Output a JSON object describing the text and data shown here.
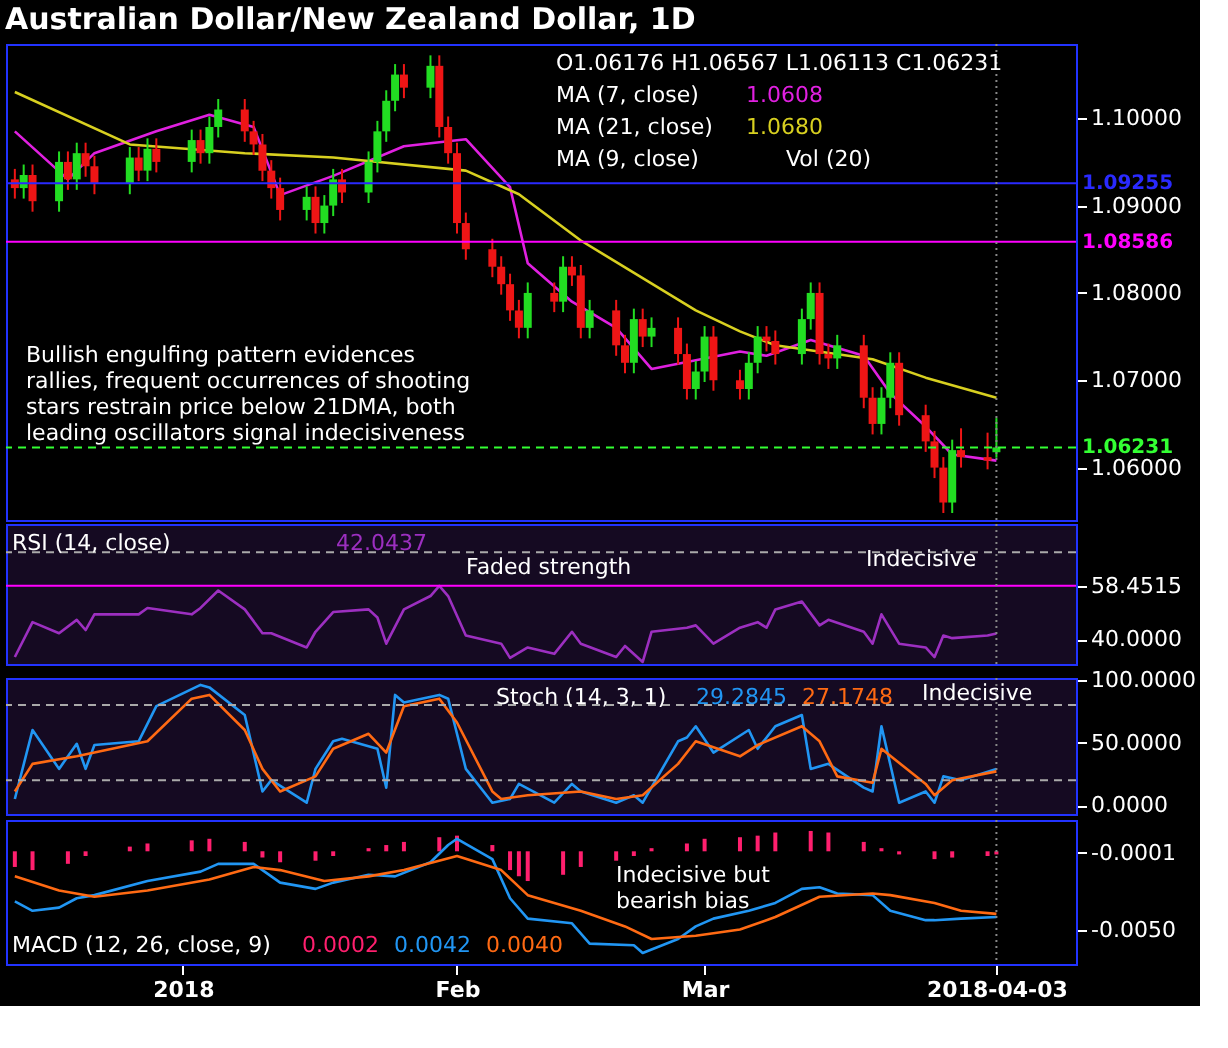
{
  "chart_data": [
    {
      "type": "candlestick",
      "title": "Australian Dollar/New Zealand Dollar, 1D",
      "annotations": [
        "O1.06176 H1.06567 L1.06113 C1.06231",
        "MA (7, close)",
        "1.0608",
        "MA (21, close)",
        "1.0680",
        "MA (9, close)",
        "Vol (20)",
        "Bullish engulfing pattern evidences rallies, frequent occurrences of shooting stars restrain price below 21DMA, both leading oscillators signal indecisiveness"
      ],
      "x": [
        "2017-12-13",
        "2017-12-14",
        "2017-12-15",
        "2017-12-18",
        "2017-12-19",
        "2017-12-20",
        "2017-12-21",
        "2017-12-22",
        "2017-12-26",
        "2017-12-27",
        "2017-12-28",
        "2017-12-29",
        "2018-01-02",
        "2018-01-03",
        "2018-01-04",
        "2018-01-05",
        "2018-01-08",
        "2018-01-09",
        "2018-01-10",
        "2018-01-11",
        "2018-01-12",
        "2018-01-15",
        "2018-01-16",
        "2018-01-17",
        "2018-01-18",
        "2018-01-19",
        "2018-01-22",
        "2018-01-23",
        "2018-01-24",
        "2018-01-25",
        "2018-01-26",
        "2018-01-29",
        "2018-01-30",
        "2018-01-31",
        "2018-02-01",
        "2018-02-02",
        "2018-02-05",
        "2018-02-06",
        "2018-02-07",
        "2018-02-08",
        "2018-02-09",
        "2018-02-12",
        "2018-02-13",
        "2018-02-14",
        "2018-02-15",
        "2018-02-16",
        "2018-02-19",
        "2018-02-20",
        "2018-02-21",
        "2018-02-22",
        "2018-02-23",
        "2018-02-26",
        "2018-02-27",
        "2018-02-28",
        "2018-03-01",
        "2018-03-02",
        "2018-03-05",
        "2018-03-06",
        "2018-03-07",
        "2018-03-08",
        "2018-03-09",
        "2018-03-12",
        "2018-03-13",
        "2018-03-14",
        "2018-03-15",
        "2018-03-16",
        "2018-03-19",
        "2018-03-20",
        "2018-03-21",
        "2018-03-22",
        "2018-03-23",
        "2018-03-26",
        "2018-03-27",
        "2018-03-28",
        "2018-03-29",
        "2018-03-30",
        "2018-04-02",
        "2018-04-03"
      ],
      "ohlc": [
        [
          1.093,
          1.0942,
          1.0908,
          1.092
        ],
        [
          1.092,
          1.0947,
          1.0908,
          1.0935
        ],
        [
          1.0935,
          1.0947,
          1.0893,
          1.0905
        ],
        [
          1.0905,
          1.0962,
          1.0893,
          1.095
        ],
        [
          1.095,
          1.0962,
          1.0918,
          1.093
        ],
        [
          1.093,
          1.0972,
          1.0918,
          1.096
        ],
        [
          1.096,
          1.0972,
          1.0933,
          1.0945
        ],
        [
          1.0945,
          1.0957,
          1.0913,
          1.0925
        ],
        [
          1.0925,
          1.0967,
          1.0913,
          1.0955
        ],
        [
          1.0955,
          1.0967,
          1.0928,
          1.094
        ],
        [
          1.094,
          1.0977,
          1.0928,
          1.0965
        ],
        [
          1.0965,
          1.0977,
          1.0938,
          1.095
        ],
        [
          1.095,
          1.0987,
          1.0938,
          1.0975
        ],
        [
          1.0975,
          1.0987,
          1.0948,
          1.096
        ],
        [
          1.096,
          1.1002,
          1.0948,
          1.099
        ],
        [
          1.099,
          1.1022,
          1.0978,
          1.101
        ],
        [
          1.101,
          1.1022,
          1.0973,
          1.0985
        ],
        [
          1.0985,
          1.0997,
          1.0958,
          1.097
        ],
        [
          1.097,
          1.0982,
          1.0928,
          1.094
        ],
        [
          1.094,
          1.0952,
          1.0908,
          1.092
        ],
        [
          1.092,
          1.0932,
          1.0883,
          1.0895
        ],
        [
          1.0895,
          1.0922,
          1.0883,
          1.091
        ],
        [
          1.091,
          1.0922,
          1.0868,
          1.088
        ],
        [
          1.088,
          1.0912,
          1.0868,
          1.09
        ],
        [
          1.09,
          1.0942,
          1.0888,
          1.093
        ],
        [
          1.093,
          1.0942,
          1.0903,
          1.0915
        ],
        [
          1.0915,
          1.0962,
          1.0903,
          1.095
        ],
        [
          1.095,
          1.0997,
          1.0938,
          1.0985
        ],
        [
          1.0985,
          1.1032,
          1.0973,
          1.102
        ],
        [
          1.102,
          1.1062,
          1.1008,
          1.105
        ],
        [
          1.105,
          1.1062,
          1.1023,
          1.1035
        ],
        [
          1.1035,
          1.1072,
          1.1023,
          1.106
        ],
        [
          1.106,
          1.1072,
          1.0978,
          1.099
        ],
        [
          1.099,
          1.1002,
          1.0948,
          1.096
        ],
        [
          1.096,
          1.0972,
          1.0868,
          1.088
        ],
        [
          1.088,
          1.0892,
          1.0838,
          1.085
        ],
        [
          1.085,
          1.0862,
          1.0818,
          1.083
        ],
        [
          1.083,
          1.0842,
          1.0798,
          1.081
        ],
        [
          1.081,
          1.0822,
          1.0768,
          1.078
        ],
        [
          1.078,
          1.0792,
          1.0748,
          1.076
        ],
        [
          1.076,
          1.0812,
          1.0748,
          1.08
        ],
        [
          1.08,
          1.0812,
          1.0778,
          1.079
        ],
        [
          1.079,
          1.0842,
          1.0778,
          1.083
        ],
        [
          1.083,
          1.0842,
          1.0808,
          1.082
        ],
        [
          1.082,
          1.0832,
          1.0748,
          1.076
        ],
        [
          1.076,
          1.0792,
          1.0748,
          1.078
        ],
        [
          1.078,
          1.0792,
          1.0728,
          1.074
        ],
        [
          1.074,
          1.0752,
          1.0708,
          1.072
        ],
        [
          1.072,
          1.0782,
          1.0708,
          1.077
        ],
        [
          1.077,
          1.0782,
          1.0738,
          1.075
        ],
        [
          1.075,
          1.0772,
          1.0738,
          1.076
        ],
        [
          1.076,
          1.0772,
          1.0718,
          1.073
        ],
        [
          1.073,
          1.0742,
          1.0678,
          1.069
        ],
        [
          1.069,
          1.0722,
          1.0678,
          1.071
        ],
        [
          1.071,
          1.0762,
          1.0698,
          1.075
        ],
        [
          1.075,
          1.0762,
          1.0688,
          1.07
        ],
        [
          1.07,
          1.0712,
          1.0678,
          1.069
        ],
        [
          1.069,
          1.0732,
          1.0678,
          1.072
        ],
        [
          1.072,
          1.0762,
          1.0708,
          1.075
        ],
        [
          1.075,
          1.0762,
          1.0733,
          1.0745
        ],
        [
          1.0745,
          1.0757,
          1.0718,
          1.073
        ],
        [
          1.073,
          1.0782,
          1.0718,
          1.077
        ],
        [
          1.077,
          1.0812,
          1.0758,
          1.08
        ],
        [
          1.08,
          1.0812,
          1.0718,
          1.073
        ],
        [
          1.073,
          1.0742,
          1.0713,
          1.0725
        ],
        [
          1.0725,
          1.0752,
          1.0713,
          1.074
        ],
        [
          1.074,
          1.0752,
          1.0668,
          1.068
        ],
        [
          1.068,
          1.0692,
          1.0638,
          1.065
        ],
        [
          1.065,
          1.0692,
          1.0638,
          1.068
        ],
        [
          1.068,
          1.0732,
          1.0668,
          1.072
        ],
        [
          1.072,
          1.0732,
          1.0648,
          1.066
        ],
        [
          1.066,
          1.0672,
          1.0618,
          1.063
        ],
        [
          1.063,
          1.0642,
          1.0588,
          1.06
        ],
        [
          1.06,
          1.0612,
          1.0548,
          1.056
        ],
        [
          1.056,
          1.0632,
          1.0548,
          1.062
        ],
        [
          1.062,
          1.0645,
          1.06,
          1.0612
        ],
        [
          1.0612,
          1.064,
          1.0598,
          1.0608
        ],
        [
          1.06176,
          1.06567,
          1.06113,
          1.06231
        ]
      ],
      "series": [
        {
          "type": "line",
          "color": "#e020e0",
          "x": [
            "2017-12-13",
            "2017-12-19",
            "2017-12-22",
            "2017-12-29",
            "2018-01-04",
            "2018-01-09",
            "2018-01-12",
            "2018-01-18",
            "2018-01-26",
            "2018-02-02",
            "2018-02-07",
            "2018-02-09",
            "2018-02-14",
            "2018-02-19",
            "2018-02-23",
            "2018-03-05",
            "2018-03-08",
            "2018-03-13",
            "2018-03-19",
            "2018-03-22",
            "2018-03-26",
            "2018-03-29",
            "2018-04-03"
          ],
          "values": [
            1.0985,
            1.093,
            1.096,
            1.0985,
            1.1004,
            1.099,
            1.0912,
            1.0934,
            1.0968,
            1.0976,
            1.0921,
            1.0834,
            1.079,
            1.076,
            1.0713,
            1.0733,
            1.0728,
            1.0746,
            1.0728,
            1.0685,
            1.0647,
            1.0615,
            1.0608
          ]
        },
        {
          "type": "line",
          "color": "#d8d020",
          "x": [
            "2017-12-13",
            "2017-12-26",
            "2018-01-08",
            "2018-01-18",
            "2018-02-02",
            "2018-02-08",
            "2018-02-15",
            "2018-02-28",
            "2018-03-05",
            "2018-03-09",
            "2018-03-20",
            "2018-03-26",
            "2018-04-03"
          ],
          "values": [
            1.103,
            1.097,
            1.096,
            1.0955,
            1.094,
            1.0913,
            1.086,
            1.078,
            1.0756,
            1.074,
            1.0724,
            1.0703,
            1.068
          ]
        }
      ],
      "ref_lines": [
        {
          "axis": "y",
          "value": 1.09255,
          "label": "1.09255",
          "color": "#2a2aff"
        },
        {
          "axis": "y",
          "value": 1.08586,
          "label": "1.08586",
          "color": "#ff00ff"
        },
        {
          "axis": "y",
          "value": 1.06231,
          "label": "1.06231",
          "color": "#33ff33",
          "line_style": "dashed"
        },
        {
          "axis": "x",
          "value": "2018-04-03",
          "color": "#888888",
          "line_style": "dotted"
        }
      ],
      "xlim": [
        "2017-12-12",
        "2018-04-12"
      ],
      "ylim": [
        1.054,
        1.1085
      ],
      "yticks": [
        {
          "value": 1.06,
          "label": "1.06000"
        },
        {
          "value": 1.07,
          "label": "1.07000"
        },
        {
          "value": 1.08,
          "label": "1.08000"
        },
        {
          "value": 1.09,
          "label": "1.09000"
        },
        {
          "value": 1.1,
          "label": "1.10000"
        }
      ],
      "tick_labels": "y"
    },
    {
      "type": "line",
      "annotations": [
        "RSI (14, close)",
        "42.0437",
        "Faded strength",
        "Indecisive"
      ],
      "series": [
        {
          "color": "#9c2fc0",
          "x": [
            "2017-12-13",
            "2017-12-15",
            "2017-12-18",
            "2017-12-20",
            "2017-12-21",
            "2017-12-22",
            "2017-12-27",
            "2017-12-28",
            "2018-01-02",
            "2018-01-03",
            "2018-01-05",
            "2018-01-08",
            "2018-01-10",
            "2018-01-11",
            "2018-01-15",
            "2018-01-16",
            "2018-01-18",
            "2018-01-22",
            "2018-01-23",
            "2018-01-24",
            "2018-01-26",
            "2018-01-29",
            "2018-01-30",
            "2018-01-31",
            "2018-02-02",
            "2018-02-06",
            "2018-02-07",
            "2018-02-09",
            "2018-02-12",
            "2018-02-14",
            "2018-02-15",
            "2018-02-19",
            "2018-02-20",
            "2018-02-22",
            "2018-02-23",
            "2018-02-27",
            "2018-02-28",
            "2018-03-02",
            "2018-03-05",
            "2018-03-07",
            "2018-03-08",
            "2018-03-09",
            "2018-03-12",
            "2018-03-14",
            "2018-03-15",
            "2018-03-19",
            "2018-03-20",
            "2018-03-21",
            "2018-03-23",
            "2018-03-26",
            "2018-03-27",
            "2018-03-28",
            "2018-03-29",
            "2018-04-02",
            "2018-04-03"
          ],
          "values": [
            33.9,
            45.9,
            42.1,
            46.7,
            43.2,
            48.6,
            48.6,
            50.8,
            48.6,
            50.8,
            56.8,
            50.3,
            42.1,
            42.1,
            37.2,
            42.6,
            49.4,
            50.3,
            47.5,
            38.5,
            50.3,
            54.9,
            58.4,
            54.9,
            41.3,
            38.5,
            33.6,
            37.2,
            35.0,
            42.6,
            38.5,
            33.9,
            37.7,
            32.2,
            42.6,
            44.0,
            44.8,
            38.5,
            44.0,
            45.9,
            44.0,
            50.3,
            53.0,
            44.8,
            46.7,
            42.6,
            38.5,
            48.6,
            38.5,
            37.2,
            33.9,
            41.3,
            40.4,
            41.3,
            42.0
          ]
        }
      ],
      "ref_lines": [
        {
          "axis": "y",
          "value": 58.4515,
          "color": "#ff00ff"
        },
        {
          "axis": "y",
          "value": 70,
          "color": "#aaaaaa",
          "line_style": "dashed"
        },
        {
          "axis": "x",
          "value": "2018-04-03",
          "color": "#888888",
          "line_style": "dotted"
        }
      ],
      "xlim": [
        "2017-12-12",
        "2018-04-12"
      ],
      "ylim": [
        31.5,
        79.7
      ],
      "yticks": [
        {
          "value": 40,
          "label": "40.0000"
        },
        {
          "value": 58.4515,
          "label": "58.4515"
        }
      ],
      "tick_labels": "y"
    },
    {
      "type": "line",
      "annotations": [
        "Stoch (14, 3, 1)",
        "29.2845",
        "27.1748",
        "Indecisive"
      ],
      "series": [
        {
          "color": "#2196f3",
          "x": [
            "2017-12-13",
            "2017-12-15",
            "2017-12-18",
            "2017-12-20",
            "2017-12-21",
            "2017-12-22",
            "2017-12-27",
            "2017-12-29",
            "2018-01-03",
            "2018-01-04",
            "2018-01-08",
            "2018-01-10",
            "2018-01-11",
            "2018-01-15",
            "2018-01-16",
            "2018-01-18",
            "2018-01-19",
            "2018-01-23",
            "2018-01-24",
            "2018-01-25",
            "2018-01-26",
            "2018-01-30",
            "2018-01-31",
            "2018-02-02",
            "2018-02-05",
            "2018-02-07",
            "2018-02-08",
            "2018-02-12",
            "2018-02-14",
            "2018-02-15",
            "2018-02-19",
            "2018-02-21",
            "2018-02-22",
            "2018-02-26",
            "2018-02-27",
            "2018-02-28",
            "2018-03-02",
            "2018-03-06",
            "2018-03-07",
            "2018-03-09",
            "2018-03-12",
            "2018-03-13",
            "2018-03-15",
            "2018-03-19",
            "2018-03-20",
            "2018-03-21",
            "2018-03-23",
            "2018-03-26",
            "2018-03-27",
            "2018-03-28",
            "2018-03-30",
            "2018-04-03"
          ],
          "values": [
            5,
            60,
            29,
            49,
            29,
            48,
            51,
            79,
            96,
            94,
            72,
            11,
            20,
            2,
            29,
            51,
            53,
            45,
            14,
            88,
            82,
            88,
            85,
            29,
            2,
            5,
            17,
            2,
            17,
            11,
            2,
            8,
            2,
            51,
            54,
            63,
            42,
            60,
            45,
            63,
            72,
            29,
            33,
            14,
            11,
            63,
            2,
            11,
            2,
            23,
            20,
            29
          ]
        },
        {
          "color": "#ff6a13",
          "x": [
            "2017-12-13",
            "2017-12-15",
            "2017-12-20",
            "2017-12-22",
            "2017-12-28",
            "2018-01-02",
            "2018-01-04",
            "2018-01-08",
            "2018-01-10",
            "2018-01-12",
            "2018-01-16",
            "2018-01-18",
            "2018-01-22",
            "2018-01-24",
            "2018-01-26",
            "2018-01-30",
            "2018-02-01",
            "2018-02-05",
            "2018-02-06",
            "2018-02-09",
            "2018-02-15",
            "2018-02-19",
            "2018-02-22",
            "2018-02-26",
            "2018-02-28",
            "2018-03-05",
            "2018-03-07",
            "2018-03-12",
            "2018-03-14",
            "2018-03-16",
            "2018-03-20",
            "2018-03-21",
            "2018-03-26",
            "2018-03-27",
            "2018-03-29",
            "2018-04-03"
          ],
          "values": [
            11,
            33,
            39,
            42,
            51,
            85,
            88,
            60,
            29,
            11,
            23,
            45,
            57,
            42,
            79,
            85,
            66,
            11,
            5,
            8,
            11,
            5,
            8,
            33,
            51,
            39,
            48,
            63,
            51,
            23,
            18,
            45,
            17,
            8,
            20,
            27
          ]
        }
      ],
      "ref_lines": [
        {
          "axis": "y",
          "value": 80,
          "color": "#aaaaaa",
          "line_style": "dashed"
        },
        {
          "axis": "y",
          "value": 20,
          "color": "#aaaaaa",
          "line_style": "dashed"
        },
        {
          "axis": "x",
          "value": "2018-04-03",
          "color": "#888888",
          "line_style": "dotted"
        }
      ],
      "xlim": [
        "2017-12-12",
        "2018-04-12"
      ],
      "ylim": [
        -7,
        101.5
      ],
      "yticks": [
        {
          "value": 0,
          "label": "0.0000"
        },
        {
          "value": 50,
          "label": "50.0000"
        },
        {
          "value": 100,
          "label": "100.0000"
        }
      ],
      "tick_labels": "y"
    },
    {
      "type": "line",
      "annotations": [
        "MACD (12, 26, close, 9)",
        "0.0002",
        "0.0042",
        "0.0040",
        "Indecisive but bearish bias"
      ],
      "series": [
        {
          "type": "bar",
          "color": "#ff1f6e",
          "x": [
            "2017-12-13",
            "2017-12-15",
            "2017-12-19",
            "2017-12-21",
            "2017-12-26",
            "2017-12-28",
            "2018-01-02",
            "2018-01-04",
            "2018-01-08",
            "2018-01-10",
            "2018-01-12",
            "2018-01-16",
            "2018-01-18",
            "2018-01-22",
            "2018-01-24",
            "2018-01-26",
            "2018-01-30",
            "2018-02-01",
            "2018-02-05",
            "2018-02-07",
            "2018-02-08",
            "2018-02-09",
            "2018-02-13",
            "2018-02-15",
            "2018-02-19",
            "2018-02-21",
            "2018-02-23",
            "2018-02-27",
            "2018-03-01",
            "2018-03-05",
            "2018-03-07",
            "2018-03-09",
            "2018-03-13",
            "2018-03-15",
            "2018-03-19",
            "2018-03-21",
            "2018-03-23",
            "2018-03-27",
            "2018-03-29",
            "2018-04-02",
            "2018-04-03"
          ],
          "values": [
            -0.001,
            -0.0012,
            -0.0008,
            -0.0003,
            0.0003,
            0.0005,
            0.0007,
            0.0008,
            0.0006,
            -0.0004,
            -0.0007,
            -0.0006,
            -0.0003,
            0.0002,
            0.0004,
            0.0006,
            0.0009,
            0.001,
            0.0004,
            -0.0012,
            -0.0016,
            -0.0019,
            -0.0015,
            -0.001,
            -0.0006,
            -0.0003,
            0.0002,
            0.0005,
            0.0008,
            0.0009,
            0.001,
            0.0012,
            0.0013,
            0.0012,
            0.0006,
            0.0002,
            -0.0002,
            -0.0005,
            -0.0004,
            -0.0003,
            -0.0002
          ]
        },
        {
          "type": "line",
          "color": "#2196f3",
          "x": [
            "2017-12-13",
            "2017-12-15",
            "2017-12-18",
            "2017-12-20",
            "2017-12-22",
            "2017-12-28",
            "2018-01-03",
            "2018-01-05",
            "2018-01-09",
            "2018-01-12",
            "2018-01-16",
            "2018-01-18",
            "2018-01-22",
            "2018-01-25",
            "2018-01-29",
            "2018-01-31",
            "2018-02-01",
            "2018-02-05",
            "2018-02-07",
            "2018-02-09",
            "2018-02-14",
            "2018-02-16",
            "2018-02-21",
            "2018-02-22",
            "2018-02-26",
            "2018-02-28",
            "2018-03-02",
            "2018-03-06",
            "2018-03-09",
            "2018-03-12",
            "2018-03-14",
            "2018-03-16",
            "2018-03-20",
            "2018-03-22",
            "2018-03-26",
            "2018-03-27",
            "2018-03-30",
            "2018-04-03"
          ],
          "values": [
            -0.0032,
            -0.0038,
            -0.0036,
            -0.003,
            -0.0028,
            -0.0019,
            -0.0013,
            -0.0008,
            -0.0008,
            -0.002,
            -0.0024,
            -0.002,
            -0.0015,
            -0.0016,
            -0.0007,
            0.0004,
            0.0008,
            -0.0005,
            -0.003,
            -0.0043,
            -0.0046,
            -0.0059,
            -0.006,
            -0.0065,
            -0.0056,
            -0.0048,
            -0.0043,
            -0.0038,
            -0.0033,
            -0.0024,
            -0.0023,
            -0.0027,
            -0.0028,
            -0.0038,
            -0.0044,
            -0.0044,
            -0.0043,
            -0.0042
          ]
        },
        {
          "type": "line",
          "color": "#ff6a13",
          "x": [
            "2017-12-13",
            "2017-12-18",
            "2017-12-22",
            "2017-12-28",
            "2018-01-04",
            "2018-01-09",
            "2018-01-12",
            "2018-01-17",
            "2018-01-22",
            "2018-01-26",
            "2018-02-01",
            "2018-02-06",
            "2018-02-09",
            "2018-02-15",
            "2018-02-20",
            "2018-02-23",
            "2018-02-28",
            "2018-03-05",
            "2018-03-09",
            "2018-03-14",
            "2018-03-20",
            "2018-03-22",
            "2018-03-27",
            "2018-03-30",
            "2018-04-03"
          ],
          "values": [
            -0.0016,
            -0.0025,
            -0.0029,
            -0.0025,
            -0.0018,
            -0.001,
            -0.0012,
            -0.0019,
            -0.0016,
            -0.0012,
            -0.0003,
            -0.0012,
            -0.0028,
            -0.0038,
            -0.0048,
            -0.0056,
            -0.0054,
            -0.005,
            -0.0042,
            -0.0029,
            -0.0027,
            -0.0028,
            -0.0033,
            -0.0038,
            -0.004
          ]
        }
      ],
      "ref_lines": [
        {
          "axis": "x",
          "value": "2018-04-03",
          "color": "#888888",
          "line_style": "dotted"
        }
      ],
      "xlim": [
        "2017-12-12",
        "2018-04-12"
      ],
      "ylim": [
        -0.0072,
        0.002
      ],
      "xticks": [
        {
          "value": "2018-01-01",
          "label": "2018"
        },
        {
          "value": "2018-02-01",
          "label": "Feb"
        },
        {
          "value": "2018-03-01",
          "label": "Mar"
        },
        {
          "value": "2018-04-03",
          "label": "2018-04-03"
        }
      ],
      "yticks": [
        {
          "value": -0.005,
          "label": "-0.0050"
        },
        {
          "value": -0.0001,
          "label": "-0.0001"
        }
      ]
    }
  ]
}
